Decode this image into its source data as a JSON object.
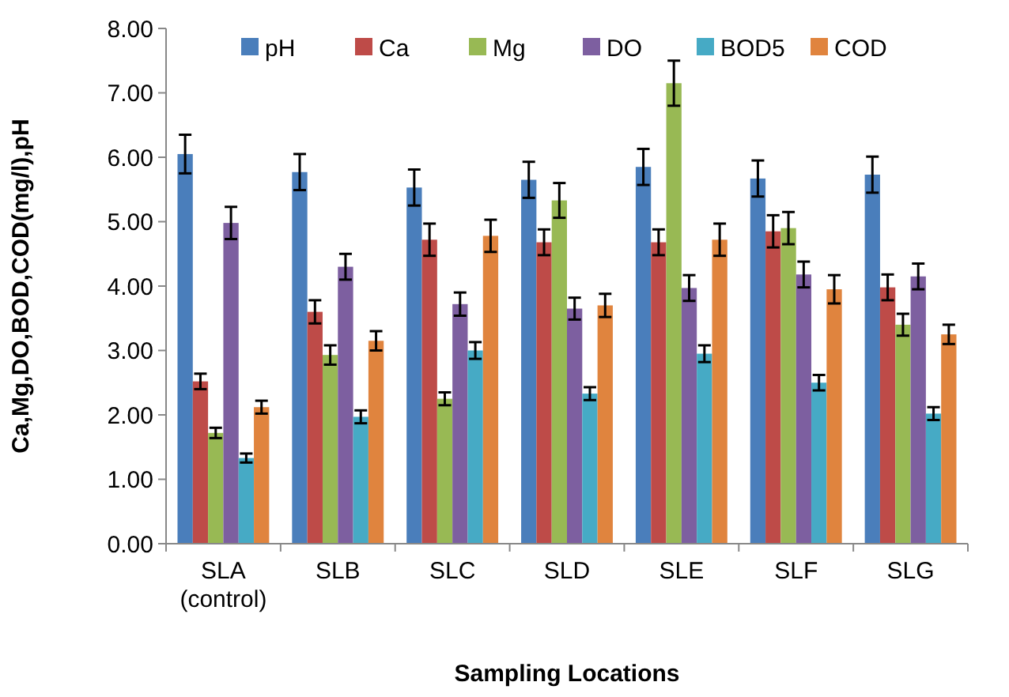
{
  "chart_data": {
    "type": "bar",
    "xlabel": "Sampling Locations",
    "ylabel": "Ca,Mg,DO,BOD,COD(mg/l),pH",
    "categories": [
      "SLA (control)",
      "SLB",
      "SLC",
      "SLD",
      "SLE",
      "SLF",
      "SLG"
    ],
    "ylim": [
      0,
      8
    ],
    "yticks": [
      {
        "value": 0,
        "label": "0.00"
      },
      {
        "value": 1,
        "label": "1.00"
      },
      {
        "value": 2,
        "label": "2.00"
      },
      {
        "value": 3,
        "label": "3.00"
      },
      {
        "value": 4,
        "label": "4.00"
      },
      {
        "value": 5,
        "label": "5.00"
      },
      {
        "value": 6,
        "label": "6.00"
      },
      {
        "value": 7,
        "label": "7.00"
      },
      {
        "value": 8,
        "label": "8.00"
      }
    ],
    "grid": false,
    "legend": "top",
    "series": [
      {
        "name": "pH",
        "color": "#4a7ebb",
        "values": [
          6.05,
          5.77,
          5.53,
          5.65,
          5.85,
          5.67,
          5.73
        ],
        "errors": [
          0.3,
          0.28,
          0.28,
          0.28,
          0.28,
          0.28,
          0.28
        ]
      },
      {
        "name": "Ca",
        "color": "#be4b48",
        "values": [
          2.52,
          3.6,
          4.72,
          4.68,
          4.68,
          4.85,
          3.98
        ],
        "errors": [
          0.12,
          0.18,
          0.25,
          0.2,
          0.2,
          0.25,
          0.2
        ]
      },
      {
        "name": "Mg",
        "color": "#98b954",
        "values": [
          1.72,
          2.93,
          2.25,
          5.33,
          7.15,
          4.9,
          3.4
        ],
        "errors": [
          0.08,
          0.15,
          0.1,
          0.27,
          0.35,
          0.25,
          0.17
        ]
      },
      {
        "name": "DO",
        "color": "#7d5fa0",
        "values": [
          4.98,
          4.3,
          3.72,
          3.65,
          3.97,
          4.18,
          4.15
        ],
        "errors": [
          0.25,
          0.2,
          0.18,
          0.17,
          0.2,
          0.2,
          0.2
        ]
      },
      {
        "name": "BOD5",
        "color": "#46aac5",
        "values": [
          1.33,
          1.97,
          3.0,
          2.33,
          2.95,
          2.5,
          2.02
        ],
        "errors": [
          0.07,
          0.1,
          0.13,
          0.1,
          0.13,
          0.12,
          0.1
        ]
      },
      {
        "name": "COD",
        "color": "#e0843e",
        "values": [
          2.12,
          3.15,
          4.78,
          3.7,
          4.72,
          3.95,
          3.25
        ],
        "errors": [
          0.1,
          0.15,
          0.25,
          0.18,
          0.25,
          0.22,
          0.15
        ]
      }
    ]
  }
}
